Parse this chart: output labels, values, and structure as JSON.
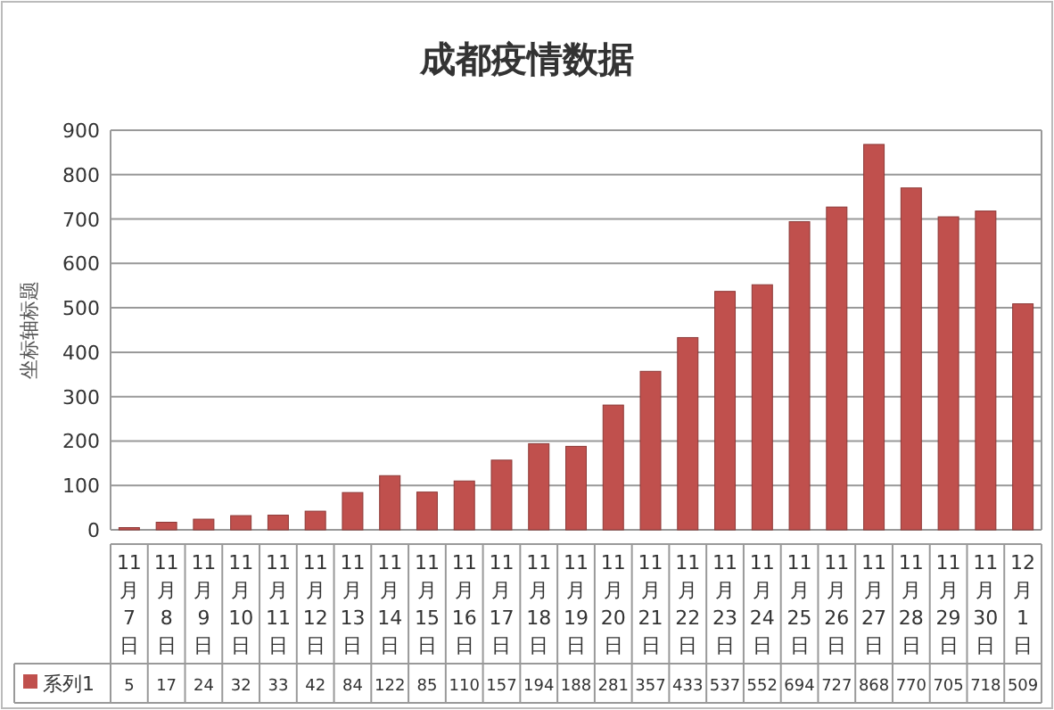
{
  "chart_data": {
    "type": "bar",
    "title": "成都疫情数据",
    "ylabel": "坐标轴标题",
    "categories": [
      "11月7日",
      "11月8日",
      "11月9日",
      "11月10日",
      "11月11日",
      "11月12日",
      "11月13日",
      "11月14日",
      "11月15日",
      "11月16日",
      "11月17日",
      "11月18日",
      "11月19日",
      "11月20日",
      "11月21日",
      "11月22日",
      "11月23日",
      "11月24日",
      "11月25日",
      "11月26日",
      "11月27日",
      "11月28日",
      "11月29日",
      "11月30日",
      "12月1日"
    ],
    "series": [
      {
        "name": "系列1",
        "color": "#c0504d",
        "values": [
          5,
          17,
          24,
          32,
          33,
          42,
          84,
          122,
          85,
          110,
          157,
          194,
          188,
          281,
          357,
          433,
          537,
          552,
          694,
          727,
          868,
          770,
          705,
          718,
          509
        ]
      }
    ],
    "ylim": [
      0,
      900
    ],
    "yticks": [
      0,
      100,
      200,
      300,
      400,
      500,
      600,
      700,
      800,
      900
    ],
    "grid": "y",
    "legend": "bottom",
    "data_labels": true
  }
}
